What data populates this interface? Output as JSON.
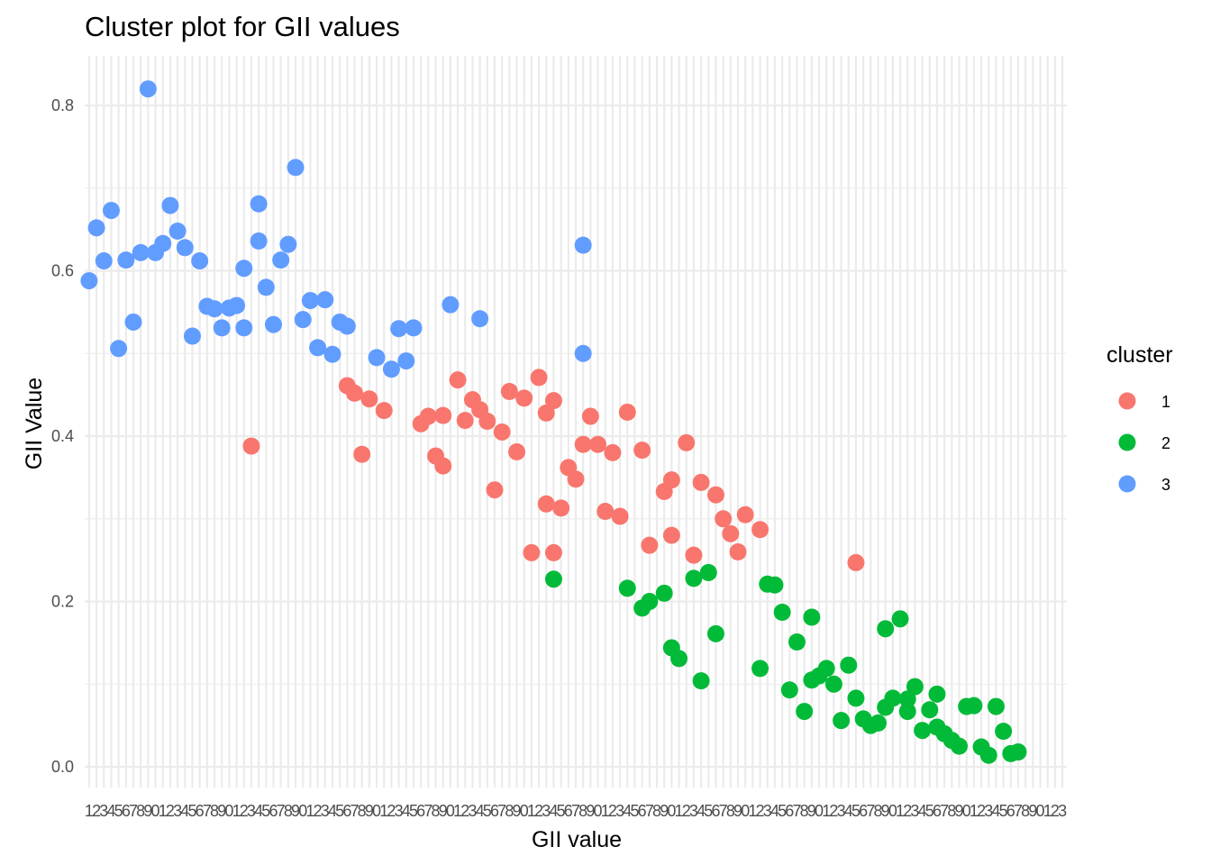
{
  "chart_data": {
    "type": "scatter",
    "title": "Cluster plot for GII values",
    "xlabel": "GII value",
    "ylabel": "GII Value",
    "ylim": [
      -0.025,
      0.86
    ],
    "y_ticks": [
      0.0,
      0.2,
      0.4,
      0.6,
      0.8
    ],
    "y_tick_labels": [
      "0.0",
      "0.2",
      "0.4",
      "0.6",
      "0.8"
    ],
    "x_type": "categorical",
    "x_category_count": 133,
    "x_tick_labels_note": "overlapping, illegible",
    "grid": true,
    "legend": {
      "title": "cluster",
      "position": "right"
    },
    "series": [
      {
        "name": "1",
        "color": "#F8766D",
        "points": [
          [
            23,
            0.388
          ],
          [
            36,
            0.461
          ],
          [
            37,
            0.452
          ],
          [
            38,
            0.378
          ],
          [
            39,
            0.445
          ],
          [
            41,
            0.431
          ],
          [
            46,
            0.415
          ],
          [
            47,
            0.424
          ],
          [
            48,
            0.376
          ],
          [
            49,
            0.425
          ],
          [
            49,
            0.364
          ],
          [
            51,
            0.468
          ],
          [
            52,
            0.419
          ],
          [
            53,
            0.444
          ],
          [
            54,
            0.432
          ],
          [
            55,
            0.418
          ],
          [
            56,
            0.335
          ],
          [
            57,
            0.405
          ],
          [
            58,
            0.454
          ],
          [
            59,
            0.381
          ],
          [
            60,
            0.446
          ],
          [
            61,
            0.259
          ],
          [
            62,
            0.471
          ],
          [
            63,
            0.428
          ],
          [
            63,
            0.318
          ],
          [
            64,
            0.443
          ],
          [
            64,
            0.259
          ],
          [
            65,
            0.313
          ],
          [
            66,
            0.362
          ],
          [
            67,
            0.348
          ],
          [
            68,
            0.39
          ],
          [
            69,
            0.424
          ],
          [
            70,
            0.39
          ],
          [
            71,
            0.309
          ],
          [
            72,
            0.38
          ],
          [
            73,
            0.303
          ],
          [
            74,
            0.429
          ],
          [
            76,
            0.383
          ],
          [
            77,
            0.268
          ],
          [
            79,
            0.333
          ],
          [
            80,
            0.347
          ],
          [
            80,
            0.28
          ],
          [
            82,
            0.392
          ],
          [
            83,
            0.256
          ],
          [
            84,
            0.344
          ],
          [
            86,
            0.329
          ],
          [
            87,
            0.3
          ],
          [
            88,
            0.282
          ],
          [
            89,
            0.26
          ],
          [
            90,
            0.305
          ],
          [
            92,
            0.287
          ],
          [
            105,
            0.247
          ]
        ]
      },
      {
        "name": "2",
        "color": "#00BA38",
        "points": [
          [
            64,
            0.227
          ],
          [
            74,
            0.216
          ],
          [
            76,
            0.192
          ],
          [
            77,
            0.2
          ],
          [
            79,
            0.21
          ],
          [
            80,
            0.144
          ],
          [
            81,
            0.131
          ],
          [
            83,
            0.228
          ],
          [
            84,
            0.104
          ],
          [
            85,
            0.235
          ],
          [
            86,
            0.161
          ],
          [
            92,
            0.119
          ],
          [
            93,
            0.221
          ],
          [
            94,
            0.22
          ],
          [
            95,
            0.187
          ],
          [
            96,
            0.093
          ],
          [
            97,
            0.151
          ],
          [
            98,
            0.067
          ],
          [
            99,
            0.105
          ],
          [
            99,
            0.181
          ],
          [
            100,
            0.11
          ],
          [
            101,
            0.119
          ],
          [
            102,
            0.1
          ],
          [
            103,
            0.056
          ],
          [
            104,
            0.123
          ],
          [
            105,
            0.083
          ],
          [
            106,
            0.058
          ],
          [
            107,
            0.05
          ],
          [
            108,
            0.053
          ],
          [
            109,
            0.072
          ],
          [
            109,
            0.167
          ],
          [
            110,
            0.083
          ],
          [
            111,
            0.179
          ],
          [
            112,
            0.067
          ],
          [
            112,
            0.082
          ],
          [
            113,
            0.097
          ],
          [
            114,
            0.044
          ],
          [
            115,
            0.069
          ],
          [
            116,
            0.048
          ],
          [
            116,
            0.088
          ],
          [
            117,
            0.04
          ],
          [
            118,
            0.032
          ],
          [
            119,
            0.025
          ],
          [
            120,
            0.073
          ],
          [
            121,
            0.074
          ],
          [
            122,
            0.024
          ],
          [
            123,
            0.014
          ],
          [
            124,
            0.073
          ],
          [
            125,
            0.043
          ],
          [
            126,
            0.016
          ],
          [
            127,
            0.018
          ]
        ]
      },
      {
        "name": "3",
        "color": "#619CFF",
        "points": [
          [
            1,
            0.588
          ],
          [
            2,
            0.652
          ],
          [
            3,
            0.612
          ],
          [
            4,
            0.673
          ],
          [
            5,
            0.506
          ],
          [
            6,
            0.613
          ],
          [
            7,
            0.538
          ],
          [
            8,
            0.622
          ],
          [
            9,
            0.82
          ],
          [
            10,
            0.622
          ],
          [
            11,
            0.633
          ],
          [
            12,
            0.679
          ],
          [
            13,
            0.648
          ],
          [
            14,
            0.628
          ],
          [
            15,
            0.521
          ],
          [
            16,
            0.612
          ],
          [
            17,
            0.557
          ],
          [
            18,
            0.554
          ],
          [
            19,
            0.531
          ],
          [
            20,
            0.555
          ],
          [
            21,
            0.558
          ],
          [
            22,
            0.603
          ],
          [
            22,
            0.531
          ],
          [
            24,
            0.681
          ],
          [
            24,
            0.636
          ],
          [
            25,
            0.58
          ],
          [
            26,
            0.535
          ],
          [
            27,
            0.613
          ],
          [
            28,
            0.632
          ],
          [
            29,
            0.725
          ],
          [
            30,
            0.541
          ],
          [
            31,
            0.564
          ],
          [
            32,
            0.507
          ],
          [
            33,
            0.565
          ],
          [
            34,
            0.499
          ],
          [
            35,
            0.538
          ],
          [
            36,
            0.533
          ],
          [
            40,
            0.495
          ],
          [
            42,
            0.481
          ],
          [
            43,
            0.53
          ],
          [
            44,
            0.491
          ],
          [
            45,
            0.531
          ],
          [
            50,
            0.559
          ],
          [
            54,
            0.542
          ],
          [
            68,
            0.631
          ],
          [
            68,
            0.5
          ]
        ]
      }
    ]
  }
}
